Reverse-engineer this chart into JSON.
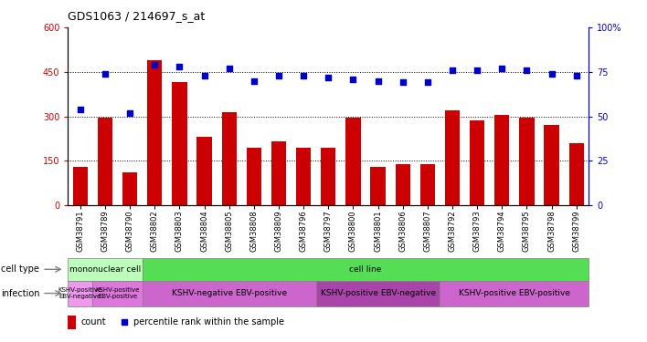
{
  "title": "GDS1063 / 214697_s_at",
  "samples": [
    "GSM38791",
    "GSM38789",
    "GSM38790",
    "GSM38802",
    "GSM38803",
    "GSM38804",
    "GSM38805",
    "GSM38808",
    "GSM38809",
    "GSM38796",
    "GSM38797",
    "GSM38800",
    "GSM38801",
    "GSM38806",
    "GSM38807",
    "GSM38792",
    "GSM38793",
    "GSM38794",
    "GSM38795",
    "GSM38798",
    "GSM38799"
  ],
  "counts": [
    130,
    295,
    110,
    490,
    415,
    230,
    315,
    195,
    215,
    195,
    195,
    295,
    130,
    140,
    140,
    320,
    285,
    305,
    295,
    270,
    210
  ],
  "percentile_ranks": [
    54,
    74,
    52,
    79,
    78,
    73,
    77,
    70,
    73,
    73,
    72,
    71,
    70,
    69,
    69,
    76,
    76,
    77,
    76,
    74,
    73
  ],
  "bar_color": "#cc0000",
  "dot_color": "#0000cc",
  "ylim_left": [
    0,
    600
  ],
  "ylim_right": [
    0,
    100
  ],
  "yticks_left": [
    0,
    150,
    300,
    450,
    600
  ],
  "yticks_right": [
    0,
    25,
    50,
    75,
    100
  ],
  "ytick_labels_right": [
    "0",
    "25",
    "50",
    "75",
    "100%"
  ],
  "cell_type_groups": [
    {
      "start": 0,
      "end": 3,
      "label": "mononuclear cell",
      "color": "#bbffbb"
    },
    {
      "start": 3,
      "end": 21,
      "label": "cell line",
      "color": "#55dd55"
    }
  ],
  "infection_groups": [
    {
      "start": 0,
      "end": 1,
      "label": "KSHV-positive\nEBV-negative",
      "color": "#ee88ee"
    },
    {
      "start": 1,
      "end": 3,
      "label": "KSHV-positive\nEBV-positive",
      "color": "#dd66dd"
    },
    {
      "start": 3,
      "end": 10,
      "label": "KSHV-negative EBV-positive",
      "color": "#cc55cc"
    },
    {
      "start": 10,
      "end": 15,
      "label": "KSHV-positive EBV-negative",
      "color": "#aa44aa"
    },
    {
      "start": 15,
      "end": 21,
      "label": "KSHV-positive EBV-positive",
      "color": "#cc55cc"
    }
  ],
  "tick_color_left": "#cc0000",
  "tick_color_right": "#0000cc",
  "hgrid_vals": [
    150,
    300,
    450
  ]
}
